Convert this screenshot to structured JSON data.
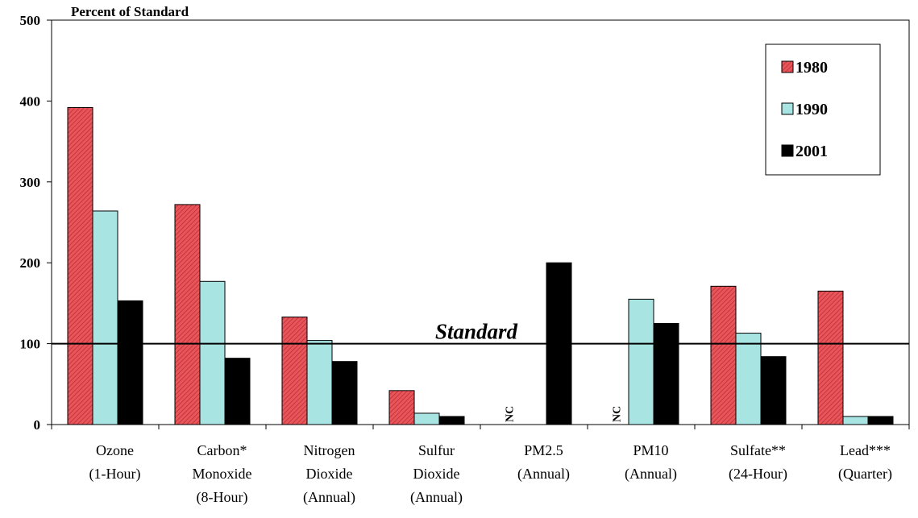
{
  "chart_data": {
    "type": "bar",
    "ylabel": "Percent of Standard",
    "ylim": [
      0,
      500
    ],
    "yticks": [
      "0",
      "100",
      "200",
      "300",
      "400",
      "500"
    ],
    "categories": [
      [
        "Ozone",
        "(1-Hour)"
      ],
      [
        "Carbon*",
        "Monoxide",
        "(8-Hour)"
      ],
      [
        "Nitrogen",
        "Dioxide",
        "(Annual)"
      ],
      [
        "Sulfur",
        "Dioxide",
        "(Annual)"
      ],
      [
        "PM2.5",
        "(Annual)"
      ],
      [
        "PM10",
        "(Annual)"
      ],
      [
        "Sulfate**",
        "(24-Hour)"
      ],
      [
        "Lead***",
        "(Quarter)"
      ]
    ],
    "series": [
      {
        "name": "1980",
        "color": "#e8555a",
        "pattern": "hatched",
        "values": [
          392,
          272,
          133,
          42,
          null,
          null,
          171,
          165
        ]
      },
      {
        "name": "1990",
        "color": "#a8e4e2",
        "pattern": "solid",
        "values": [
          264,
          177,
          104,
          14,
          null,
          155,
          113,
          10
        ]
      },
      {
        "name": "2001",
        "color": "#000000",
        "pattern": "solid",
        "values": [
          153,
          82,
          78,
          10,
          200,
          125,
          84,
          10
        ]
      }
    ],
    "reference_line": {
      "value": 100,
      "label": "Standard"
    },
    "annotations": [
      {
        "category_index": 4,
        "text": "NC"
      },
      {
        "category_index": 5,
        "text": "NC"
      }
    ],
    "legend_position": "top-right",
    "grid": false
  }
}
